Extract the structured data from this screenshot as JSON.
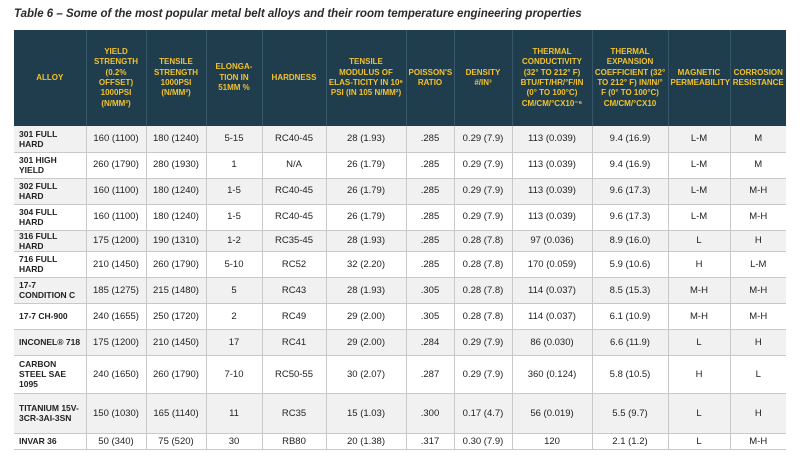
{
  "caption": "Table 6 – Some of the most popular metal belt alloys and their room temperature engineering properties",
  "headers": [
    "ALLOY",
    "YIELD STRENGTH (0.2% OFFSET) 1000PSI (N/MM²)",
    "TENSILE STRENGTH 1000PSI (N/MM²)",
    "ELONGA-TION IN 51MM %",
    "HARDNESS",
    "TENSILE MODULUS OF ELAS-TICITY IN 10⁶ PSI (IN 105 N/MM²)",
    "POISSON'S RATIO",
    "DENSITY #/IN³",
    "THERMAL CONDUCTIVITY (32° TO 212° F) BTU/FT/HR/°F/IN (0° TO 100°C) CM/CM/°CX10⁻⁶",
    "THERMAL EXPANSION COEFFICIENT (32° TO 212° F) IN/IN/° F (0° TO 100°C) CM/CM/°CX10",
    "MAGNETIC PERMEABILITY",
    "CORROSION RESISTANCE"
  ],
  "rows": [
    [
      "301 FULL HARD",
      "160 (1100)",
      "180 (1240)",
      "5-15",
      "RC40-45",
      "28 (1.93)",
      ".285",
      "0.29 (7.9)",
      "113 (0.039)",
      "9.4 (16.9)",
      "L-M",
      "M"
    ],
    [
      "301 HIGH YIELD",
      "260 (1790)",
      "280 (1930)",
      "1",
      "N/A",
      "26 (1.79)",
      ".285",
      "0.29 (7.9)",
      "113 (0.039)",
      "9.4 (16.9)",
      "L-M",
      "M"
    ],
    [
      "302 FULL HARD",
      "160 (1100)",
      "180 (1240)",
      "1-5",
      "RC40-45",
      "26 (1.79)",
      ".285",
      "0.29 (7.9)",
      "113 (0.039)",
      "9.6 (17.3)",
      "L-M",
      "M-H"
    ],
    [
      "304 FULL HARD",
      "160 (1100)",
      "180 (1240)",
      "1-5",
      "RC40-45",
      "26 (1.79)",
      ".285",
      "0.29 (7.9)",
      "113 (0.039)",
      "9.6 (17.3)",
      "L-M",
      "M-H"
    ],
    [
      "316 FULL HARD",
      "175 (1200)",
      "190 (1310)",
      "1-2",
      "RC35-45",
      "28 (1.93)",
      ".285",
      "0.28 (7.8)",
      "97 (0.036)",
      "8.9 (16.0)",
      "L",
      "H"
    ],
    [
      "716 FULL HARD",
      "210 (1450)",
      "260 (1790)",
      "5-10",
      "RC52",
      "32 (2.20)",
      ".285",
      "0.28 (7.8)",
      "170 (0.059)",
      "5.9 (10.6)",
      "H",
      "L-M"
    ],
    [
      "17-7 CONDITION C",
      "185 (1275)",
      "215 (1480)",
      "5",
      "RC43",
      "28 (1.93)",
      ".305",
      "0.28 (7.8)",
      "114 (0.037)",
      "8.5 (15.3)",
      "M-H",
      "M-H"
    ],
    [
      "17-7 CH-900",
      "240 (1655)",
      "250 (1720)",
      "2",
      "RC49",
      "29 (2.00)",
      ".305",
      "0.28 (7.8)",
      "114 (0.037)",
      "6.1 (10.9)",
      "M-H",
      "M-H"
    ],
    [
      "INCONEL® 718",
      "175 (1200)",
      "210 (1450)",
      "17",
      "RC41",
      "29 (2.00)",
      ".284",
      "0.29 (7.9)",
      "86 (0.030)",
      "6.6 (11.9)",
      "L",
      "H"
    ],
    [
      "CARBON STEEL SAE 1095",
      "240 (1650)",
      "260 (1790)",
      "7-10",
      "RC50-55",
      "30 (2.07)",
      ".287",
      "0.29 (7.9)",
      "360 (0.124)",
      "5.8 (10.5)",
      "H",
      "L"
    ],
    [
      "TITANIUM 15V-3CR-3AI-3SN",
      "150 (1030)",
      "165 (1140)",
      "11",
      "RC35",
      "15 (1.03)",
      ".300",
      "0.17 (4.7)",
      "56 (0.019)",
      "5.5 (9.7)",
      "L",
      "H"
    ],
    [
      "INVAR 36",
      "50 (340)",
      "75 (520)",
      "30",
      "RB80",
      "20 (1.38)",
      ".317",
      "0.30 (7.9)",
      "120",
      "2.1 (1.2)",
      "L",
      "M-H"
    ]
  ]
}
